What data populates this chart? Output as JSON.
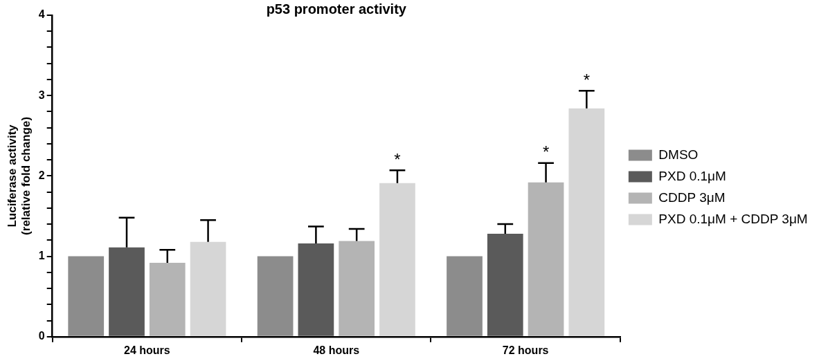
{
  "chart_data": {
    "type": "bar",
    "title": "p53 promoter activity",
    "ylabel": "Luciferase activity\n(relative fold change)",
    "categories": [
      "24 hours",
      "48 hours",
      "72 hours"
    ],
    "series": [
      {
        "name": "DMSO",
        "color": "#8c8c8c",
        "values": [
          1.0,
          1.0,
          1.0
        ],
        "errors": [
          null,
          null,
          null
        ]
      },
      {
        "name": "PXD 0.1μM",
        "color": "#5a5a5a",
        "values": [
          1.11,
          1.16,
          1.28
        ],
        "errors": [
          [
            1.11,
            1.48
          ],
          [
            1.16,
            1.37
          ],
          [
            1.28,
            1.4
          ]
        ]
      },
      {
        "name": "CDDP 3μM",
        "color": "#b4b4b4",
        "values": [
          0.92,
          1.19,
          1.92
        ],
        "value_labels": [
          null,
          null,
          "*"
        ],
        "errors": [
          [
            0.92,
            1.08
          ],
          [
            1.19,
            1.34
          ],
          [
            1.92,
            2.16
          ]
        ]
      },
      {
        "name": "PXD 0.1μM + CDDP 3μM",
        "color": "#d6d6d6",
        "values": [
          1.18,
          1.91,
          2.84
        ],
        "value_labels": [
          null,
          "*",
          "*"
        ],
        "errors": [
          [
            1.18,
            1.45
          ],
          [
            1.91,
            2.07
          ],
          [
            2.84,
            3.06
          ]
        ]
      }
    ],
    "ylim": [
      0,
      4
    ],
    "yticks": [
      0,
      {
        "value": 0.2,
        "label": null
      },
      {
        "value": 0.4,
        "label": null
      },
      {
        "value": 0.6,
        "label": null
      },
      {
        "value": 0.8,
        "label": null
      },
      1,
      {
        "value": 1.2,
        "label": null
      },
      {
        "value": 1.4,
        "label": null
      },
      {
        "value": 1.6,
        "label": null
      },
      {
        "value": 1.8,
        "label": null
      },
      2,
      {
        "value": 2.2,
        "label": null
      },
      {
        "value": 2.4,
        "label": null
      },
      {
        "value": 2.6,
        "label": null
      },
      {
        "value": 2.8,
        "label": null
      },
      3,
      {
        "value": 3.2,
        "label": null
      },
      {
        "value": 3.4,
        "label": null
      },
      {
        "value": 3.6,
        "label": null
      },
      {
        "value": 3.8,
        "label": null
      },
      4
    ],
    "grid": false,
    "legend": "right"
  }
}
